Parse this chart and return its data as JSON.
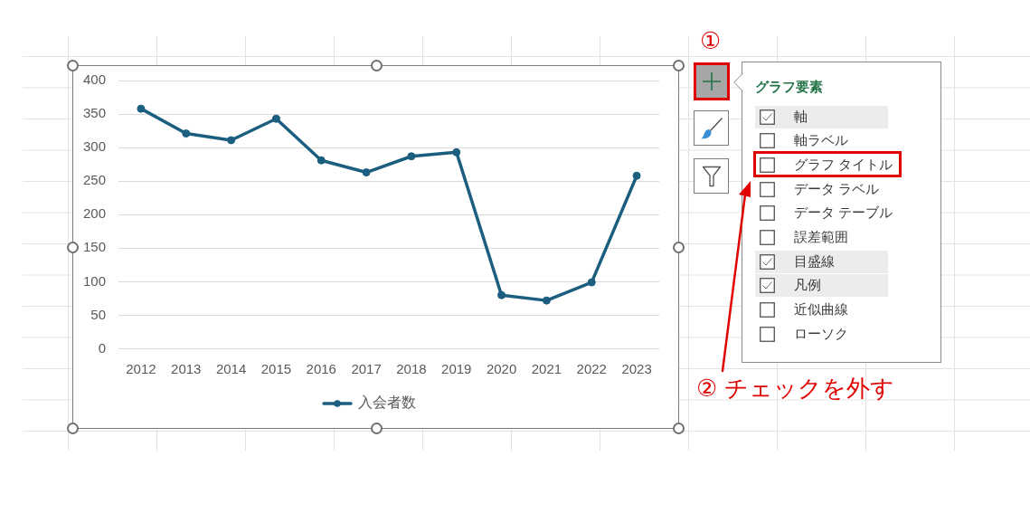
{
  "chart_data": {
    "type": "line",
    "categories": [
      "2012",
      "2013",
      "2014",
      "2015",
      "2016",
      "2017",
      "2018",
      "2019",
      "2020",
      "2021",
      "2022",
      "2023"
    ],
    "series": [
      {
        "name": "入会者数",
        "color": "#1b5e7f",
        "values": [
          358,
          321,
          311,
          343,
          281,
          263,
          287,
          293,
          80,
          72,
          99,
          258
        ]
      }
    ],
    "ylim": [
      0,
      400
    ],
    "yticks": [
      0,
      50,
      100,
      150,
      200,
      250,
      300,
      350,
      400
    ],
    "grid": "y",
    "legend": "bottom",
    "marker": "circle",
    "line_style": "solid",
    "annotations": [
      "①",
      "グラフ要素",
      "軸",
      "軸ラベル",
      "グラフ タイトル",
      "データ ラベル",
      "データ テーブル",
      "誤差範囲",
      "目盛線",
      "凡例",
      "近似曲線",
      "ローソク",
      "② チェックを外す"
    ]
  }
}
